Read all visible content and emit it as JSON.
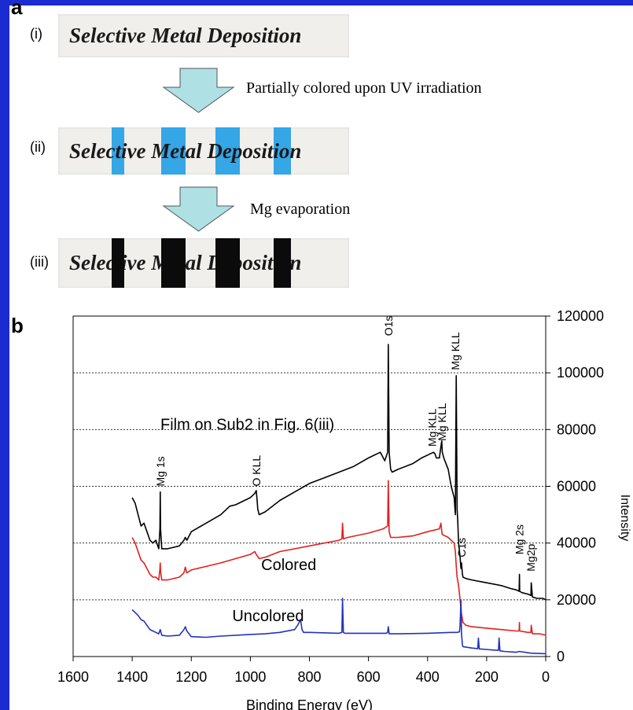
{
  "panel_a": {
    "letter": "a",
    "steps": [
      {
        "label": "(i)",
        "text": "Selective Metal Deposition"
      },
      {
        "label": "(ii)",
        "text": "Selective Metal Deposition",
        "stripe_color": "#35a6e6"
      },
      {
        "label": "(iii)",
        "text": "Selective Metal Deposition",
        "stripe_color": "#0b0b0b"
      }
    ],
    "arrows": [
      {
        "note": "Partially colored upon UV irradiation"
      },
      {
        "note": "Mg evaporation"
      }
    ],
    "arrow_color": "#aee0e4"
  },
  "panel_b": {
    "letter": "b"
  },
  "chart_data": {
    "type": "line",
    "xlabel": "Binding Energy (eV)",
    "ylabel": "Intensity",
    "xlim": [
      1600,
      0
    ],
    "ylim": [
      0,
      120000
    ],
    "x_ticks": [
      "1600",
      "1400",
      "1200",
      "1000",
      "800",
      "600",
      "400",
      "200",
      "0"
    ],
    "y_ticks": [
      "0",
      "20000",
      "40000",
      "60000",
      "80000",
      "100000",
      "120000"
    ],
    "grid": "horizontal-dotted",
    "annotations": [
      {
        "text": "Film on Sub2 in Fig. 6(iii)",
        "x": 1010,
        "y": 80000
      },
      {
        "text": "Colored",
        "x": 870,
        "y": 30500
      },
      {
        "text": "Uncolored",
        "x": 940,
        "y": 12500
      }
    ],
    "peak_labels": [
      {
        "text": "Mg 1s",
        "x": 1305,
        "y": 60000
      },
      {
        "text": "O KLL",
        "x": 980,
        "y": 60000
      },
      {
        "text": "O1s",
        "x": 533,
        "y": 113000
      },
      {
        "text": "Mg KLL",
        "x": 385,
        "y": 74000
      },
      {
        "text": "Mg KLL",
        "x": 352,
        "y": 76000
      },
      {
        "text": "Mg KLL",
        "x": 306,
        "y": 101000
      },
      {
        "text": "C1s",
        "x": 285,
        "y": 35000
      },
      {
        "text": "Mg 2s",
        "x": 89,
        "y": 36000
      },
      {
        "text": "Mg2p",
        "x": 50,
        "y": 30000
      }
    ],
    "series": [
      {
        "color": "#000000",
        "x": [
          1400,
          1390,
          1380,
          1370,
          1360,
          1350,
          1340,
          1330,
          1320,
          1310,
          1306,
          1305,
          1304,
          1300,
          1290,
          1280,
          1260,
          1240,
          1225,
          1220,
          1215,
          1200,
          1150,
          1100,
          1070,
          1050,
          1020,
          1000,
          985,
          980,
          977,
          975,
          970,
          950,
          900,
          850,
          800,
          750,
          700,
          650,
          600,
          560,
          545,
          535,
          533,
          530,
          525,
          520,
          500,
          450,
          420,
          400,
          380,
          375,
          370,
          360,
          355,
          352,
          350,
          345,
          330,
          320,
          310,
          306,
          303,
          300,
          298,
          295,
          290,
          287,
          285,
          282,
          280,
          270,
          250,
          200,
          150,
          120,
          100,
          90,
          89,
          88,
          80,
          60,
          50,
          49,
          45,
          30,
          10,
          0
        ],
        "y": [
          56000,
          54000,
          50000,
          46000,
          47000,
          44000,
          41000,
          40000,
          41000,
          38000,
          45000,
          58000,
          45000,
          38000,
          38000,
          38000,
          38500,
          39000,
          41000,
          42000,
          41000,
          44000,
          47000,
          50000,
          53000,
          53500,
          55000,
          56000,
          57500,
          58500,
          55000,
          52000,
          50000,
          51000,
          55000,
          58000,
          61000,
          63000,
          65000,
          67000,
          70000,
          72000,
          69000,
          72000,
          110000,
          72000,
          66000,
          65000,
          66000,
          68000,
          70000,
          71000,
          72000,
          71500,
          70000,
          70000,
          74000,
          76000,
          72000,
          70000,
          66000,
          60000,
          56000,
          50000,
          99000,
          52000,
          48000,
          40000,
          35000,
          31000,
          33000,
          29000,
          28000,
          27500,
          27000,
          26000,
          25000,
          24000,
          23500,
          23000,
          29000,
          23000,
          22500,
          22000,
          21500,
          26000,
          21000,
          20500,
          20500,
          20000
        ]
      },
      {
        "color": "#e22020",
        "x": [
          1400,
          1390,
          1380,
          1370,
          1360,
          1350,
          1340,
          1330,
          1320,
          1310,
          1306,
          1305,
          1304,
          1300,
          1280,
          1240,
          1225,
          1220,
          1215,
          1200,
          1100,
          1000,
          985,
          980,
          970,
          950,
          900,
          800,
          700,
          690,
          688,
          685,
          670,
          600,
          550,
          535,
          533,
          530,
          525,
          500,
          450,
          400,
          360,
          355,
          352,
          350,
          330,
          310,
          306,
          303,
          300,
          295,
          290,
          285,
          280,
          270,
          250,
          200,
          150,
          100,
          90,
          89,
          88,
          60,
          50,
          49,
          45,
          20,
          0
        ],
        "y": [
          42000,
          40000,
          37000,
          34000,
          33000,
          31000,
          29000,
          28000,
          28000,
          27000,
          31000,
          33000,
          30000,
          27000,
          27000,
          28000,
          29500,
          31500,
          29500,
          30500,
          33000,
          36000,
          37000,
          36000,
          34500,
          35000,
          37000,
          39000,
          41000,
          41500,
          47000,
          41500,
          42000,
          43500,
          45000,
          46000,
          62000,
          44000,
          42000,
          42000,
          42500,
          44000,
          45000,
          47000,
          44000,
          43000,
          42000,
          40000,
          37000,
          32000,
          28000,
          25000,
          20000,
          15000,
          12000,
          11000,
          10500,
          10000,
          9500,
          9000,
          9000,
          12000,
          9000,
          8500,
          8500,
          11000,
          8000,
          8000,
          7500
        ]
      },
      {
        "color": "#2233bb",
        "x": [
          1400,
          1390,
          1380,
          1370,
          1360,
          1350,
          1340,
          1330,
          1320,
          1310,
          1305,
          1300,
          1280,
          1240,
          1225,
          1220,
          1215,
          1200,
          1150,
          1100,
          1000,
          950,
          900,
          850,
          840,
          830,
          825,
          820,
          800,
          700,
          690,
          688,
          685,
          680,
          600,
          540,
          535,
          533,
          530,
          500,
          400,
          320,
          300,
          292,
          290,
          287,
          285,
          282,
          280,
          250,
          230,
          228,
          225,
          200,
          180,
          160,
          158,
          155,
          140,
          100,
          90,
          50,
          0
        ],
        "y": [
          16500,
          15500,
          14500,
          13000,
          12500,
          11000,
          9500,
          9000,
          8500,
          8000,
          9500,
          7500,
          7200,
          7500,
          9500,
          10500,
          9000,
          7000,
          6800,
          7200,
          7800,
          8000,
          8500,
          9500,
          11000,
          13000,
          9500,
          8500,
          8500,
          8200,
          8500,
          20500,
          8500,
          8200,
          8200,
          8200,
          8500,
          10500,
          8000,
          8000,
          8200,
          8500,
          8500,
          8700,
          11000,
          20000,
          8000,
          4000,
          3500,
          3000,
          2800,
          6500,
          2700,
          2500,
          2300,
          2200,
          6500,
          2000,
          1800,
          1500,
          1800,
          1200,
          1000
        ]
      }
    ]
  }
}
